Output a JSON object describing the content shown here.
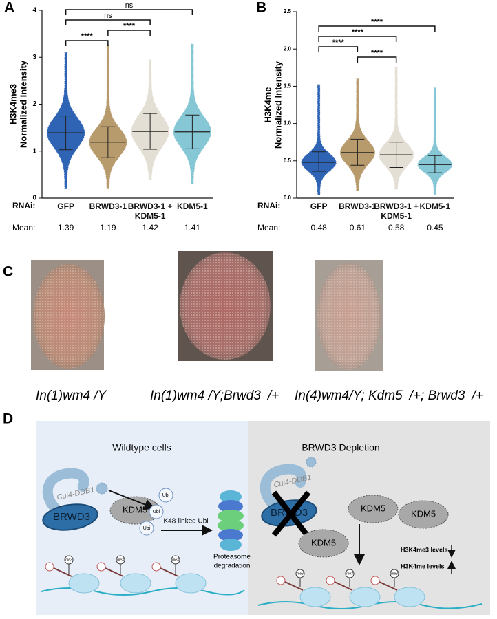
{
  "panel_labels": [
    "A",
    "B",
    "C",
    "D"
  ],
  "chart_data": [
    {
      "type": "dot",
      "ylabel": [
        "H3K4me3",
        "Normalized Intensity"
      ],
      "row_labels": [
        "RNAi:",
        "Mean:"
      ],
      "categories": [
        "GFP",
        "BRWD3-1",
        "BRWD3-1 + KDM5-1",
        "KDM5-1"
      ],
      "colors": [
        "#2f64b4",
        "#b89b6c",
        "#e4dfd4",
        "#86c7d6"
      ],
      "means": [
        1.39,
        1.19,
        1.42,
        1.41
      ],
      "sd_low": [
        1.03,
        0.86,
        1.04,
        1.05
      ],
      "sd_high": [
        1.75,
        1.52,
        1.8,
        1.77
      ],
      "min": [
        0.2,
        0.2,
        0.4,
        0.3
      ],
      "max": [
        3.1,
        3.25,
        2.95,
        3.28
      ],
      "ylim": [
        0,
        4
      ],
      "yticks": [
        0,
        1,
        2,
        3,
        4
      ],
      "comparisons": [
        {
          "between": [
            0,
            3
          ],
          "label": "ns"
        },
        {
          "between": [
            0,
            2
          ],
          "label": "ns"
        },
        {
          "between": [
            1,
            2
          ],
          "label": "****"
        },
        {
          "between": [
            0,
            1
          ],
          "label": "****"
        }
      ]
    },
    {
      "type": "dot",
      "ylabel": [
        "H3K4me",
        "Normalized Intensity"
      ],
      "row_labels": [
        "RNAi:",
        "Mean:"
      ],
      "categories": [
        "GFP",
        "BRWD3-1",
        "BRWD3-1 + KDM5-1",
        "KDM5-1"
      ],
      "colors": [
        "#2f64b4",
        "#b89b6c",
        "#e4dfd4",
        "#86c7d6"
      ],
      "means": [
        0.48,
        0.61,
        0.58,
        0.45
      ],
      "sd_low": [
        0.36,
        0.44,
        0.41,
        0.34
      ],
      "sd_high": [
        0.62,
        0.79,
        0.75,
        0.57
      ],
      "min": [
        0.05,
        0.1,
        0.12,
        0.05
      ],
      "max": [
        1.52,
        1.6,
        1.75,
        1.48
      ],
      "ylim": [
        0,
        2.5
      ],
      "yticks": [
        {
          "value": 0,
          "label": "0.0"
        },
        0.5,
        {
          "value": 1,
          "label": "1.0"
        },
        1.5,
        {
          "value": 2,
          "label": "2.0"
        },
        2.5
      ],
      "comparisons": [
        {
          "between": [
            0,
            3
          ],
          "label": "****"
        },
        {
          "between": [
            0,
            2
          ],
          "label": "****"
        },
        {
          "between": [
            0,
            1
          ],
          "label": "****"
        },
        {
          "between": [
            1,
            2
          ],
          "label": "****"
        }
      ]
    }
  ],
  "eye_images": [
    {
      "caption": "In(1)wm4 /Y"
    },
    {
      "caption": "In(1)wm4 /Y;Brwd3⁻/+"
    },
    {
      "caption": "In(4)wm4/Y; Kdm5⁻/+; Brwd3⁻/+"
    }
  ],
  "diagram": {
    "wildtype": {
      "title": "Wildtype cells",
      "cul4": "Cul4-DDB1",
      "brwd3": "BRWD3",
      "kdm5": "KDM5",
      "ubi": [
        "Ubi",
        "Ubi",
        "Ubi"
      ],
      "arrow_label": "K48-linked Ubi",
      "proteasome": [
        "Proteasome",
        "degradation"
      ],
      "marks": [
        "me3",
        "me3",
        "me3"
      ]
    },
    "depletion": {
      "title": "BRWD3 Depletion",
      "cul4": "Cul4-DDB1",
      "brwd3": "BRWD3",
      "kdm5": [
        "KDM5",
        "KDM5",
        "KDM5"
      ],
      "effects": [
        "H3K4me3 levels",
        "H3K4me levels"
      ],
      "marks": [
        "me3",
        "me3",
        "me3"
      ]
    }
  }
}
